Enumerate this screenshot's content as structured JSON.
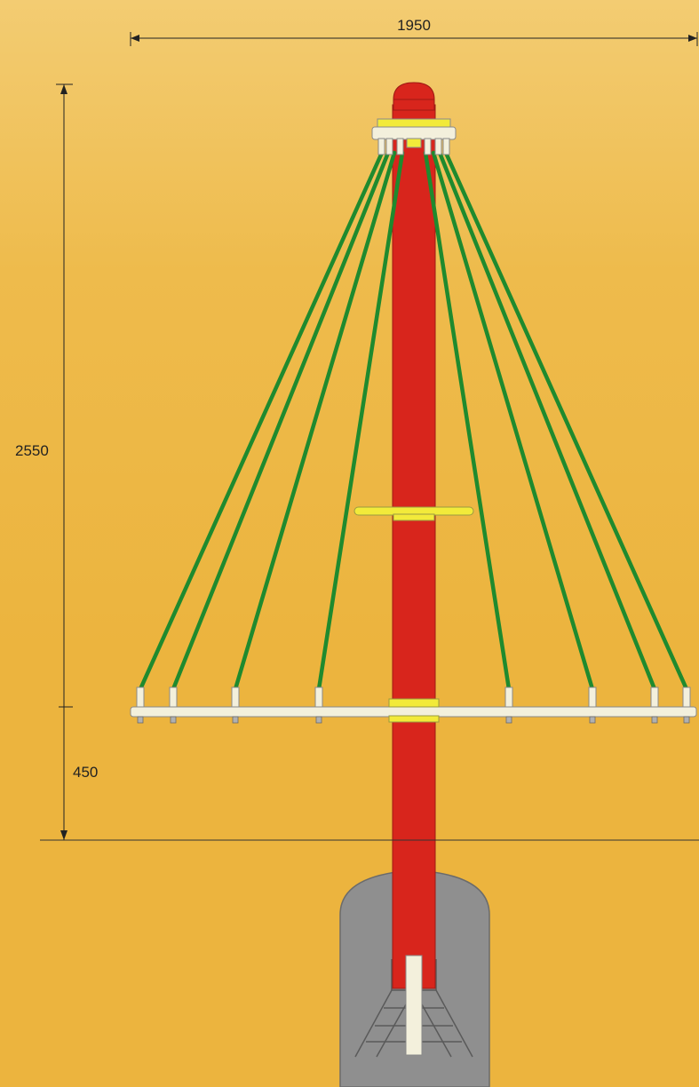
{
  "dimensions": {
    "width_label": "1950",
    "height_label": "2550",
    "ground_label": "450"
  },
  "colors": {
    "background": "#ecb43e",
    "pole": "#d8251c",
    "ropes": "#1f8a2e",
    "hub_yellow": "#f2ea3a",
    "bar_white": "#f3f0dc",
    "foundation": "#8f8f8f",
    "dimension_line": "#222222"
  }
}
